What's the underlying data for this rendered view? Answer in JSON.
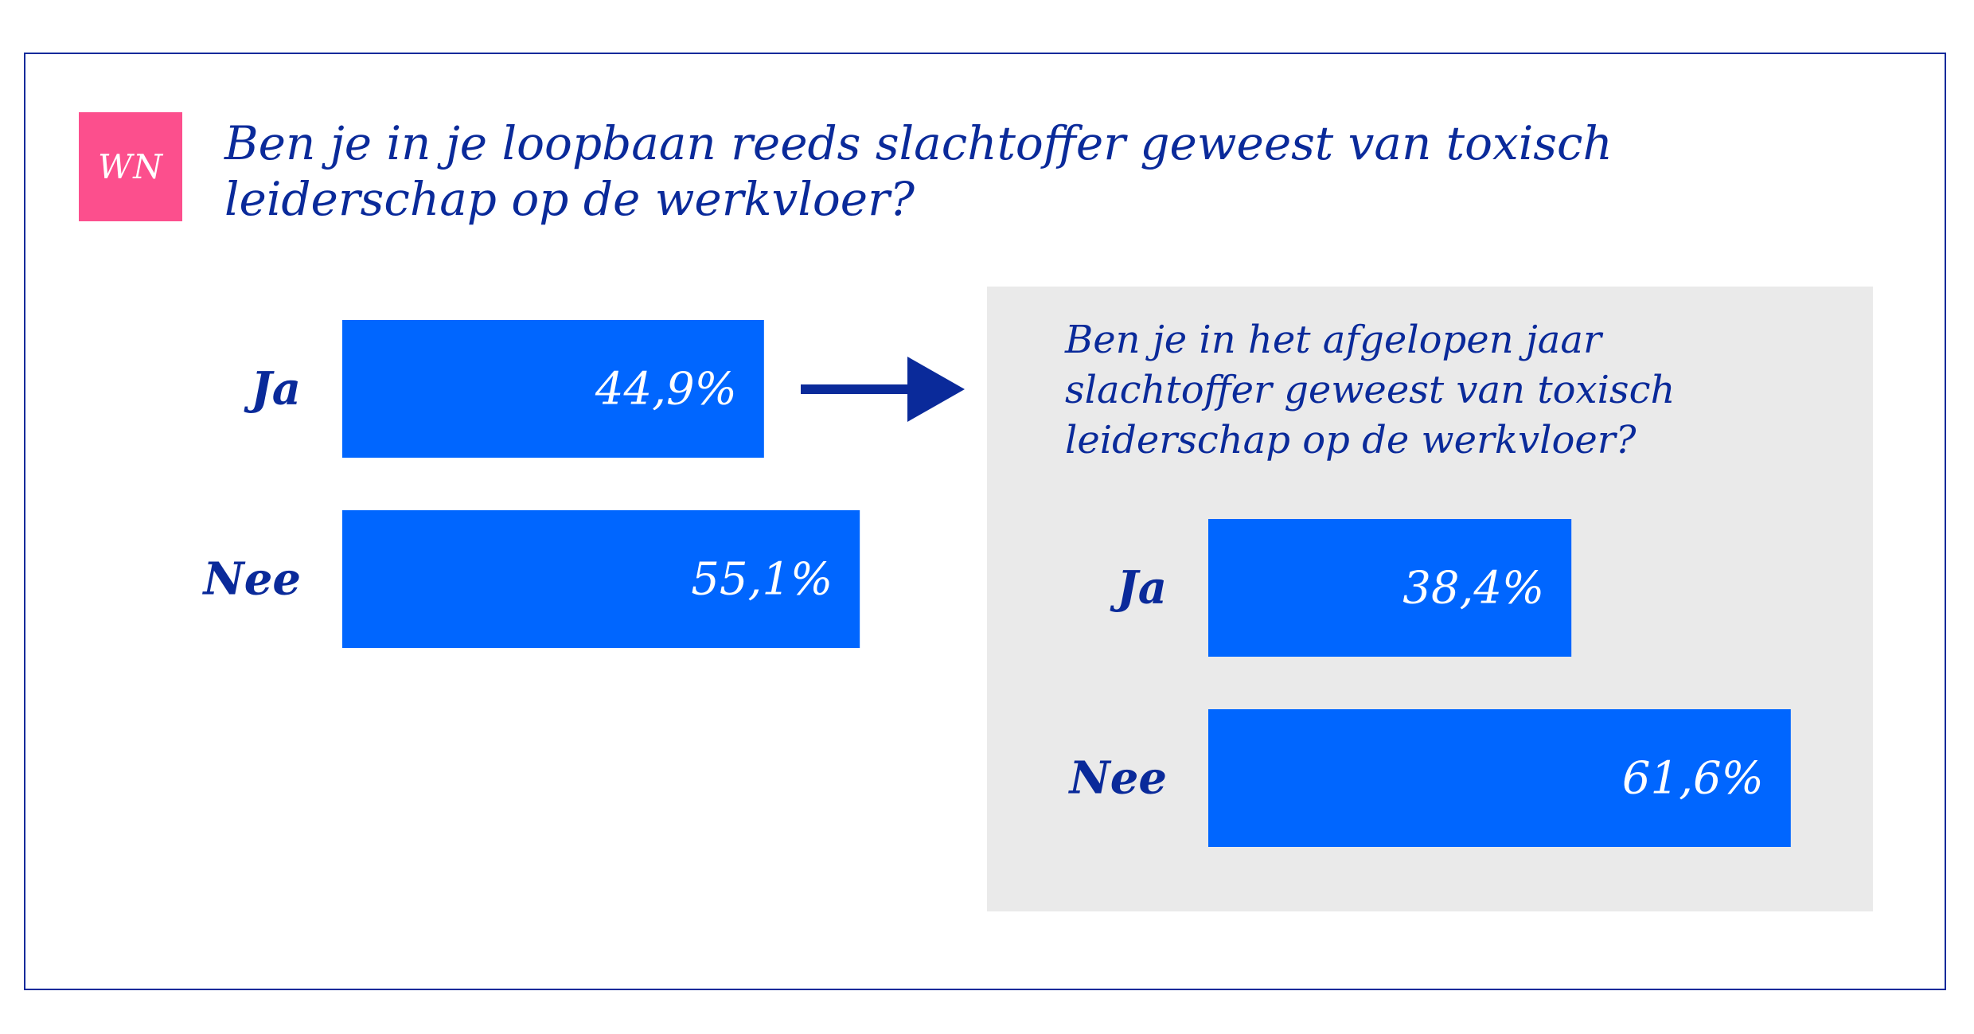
{
  "logo": {
    "text": "WN"
  },
  "title_lines": [
    "Ben je in je loopbaan reeds slachtoffer geweest van toxisch",
    "leiderschap op de werkvloer?"
  ],
  "subtitle_lines": [
    "Ben je in het afgelopen jaar",
    "slachtoffer geweest van toxisch",
    "leiderschap op de werkvloer?"
  ],
  "colors": {
    "bar": "#0066ff",
    "text_dark_blue": "#0a2a9a",
    "logo_pink": "#fc4f8d",
    "panel_gray": "#eaeaea"
  },
  "chart_data": [
    {
      "type": "bar",
      "orientation": "horizontal",
      "title": "Ben je in je loopbaan reeds slachtoffer geweest van toxisch leiderschap op de werkvloer?",
      "categories": [
        "Ja",
        "Nee"
      ],
      "values": [
        44.9,
        55.1
      ],
      "value_labels": [
        "44,9%",
        "55,1%"
      ],
      "unit": "%",
      "xlim": [
        0,
        100
      ]
    },
    {
      "type": "bar",
      "orientation": "horizontal",
      "title": "Ben je in het afgelopen jaar slachtoffer geweest van toxisch leiderschap op de werkvloer?",
      "categories": [
        "Ja",
        "Nee"
      ],
      "values": [
        38.4,
        61.6
      ],
      "value_labels": [
        "38,4%",
        "61,6%"
      ],
      "unit": "%",
      "xlim": [
        0,
        100
      ]
    }
  ]
}
